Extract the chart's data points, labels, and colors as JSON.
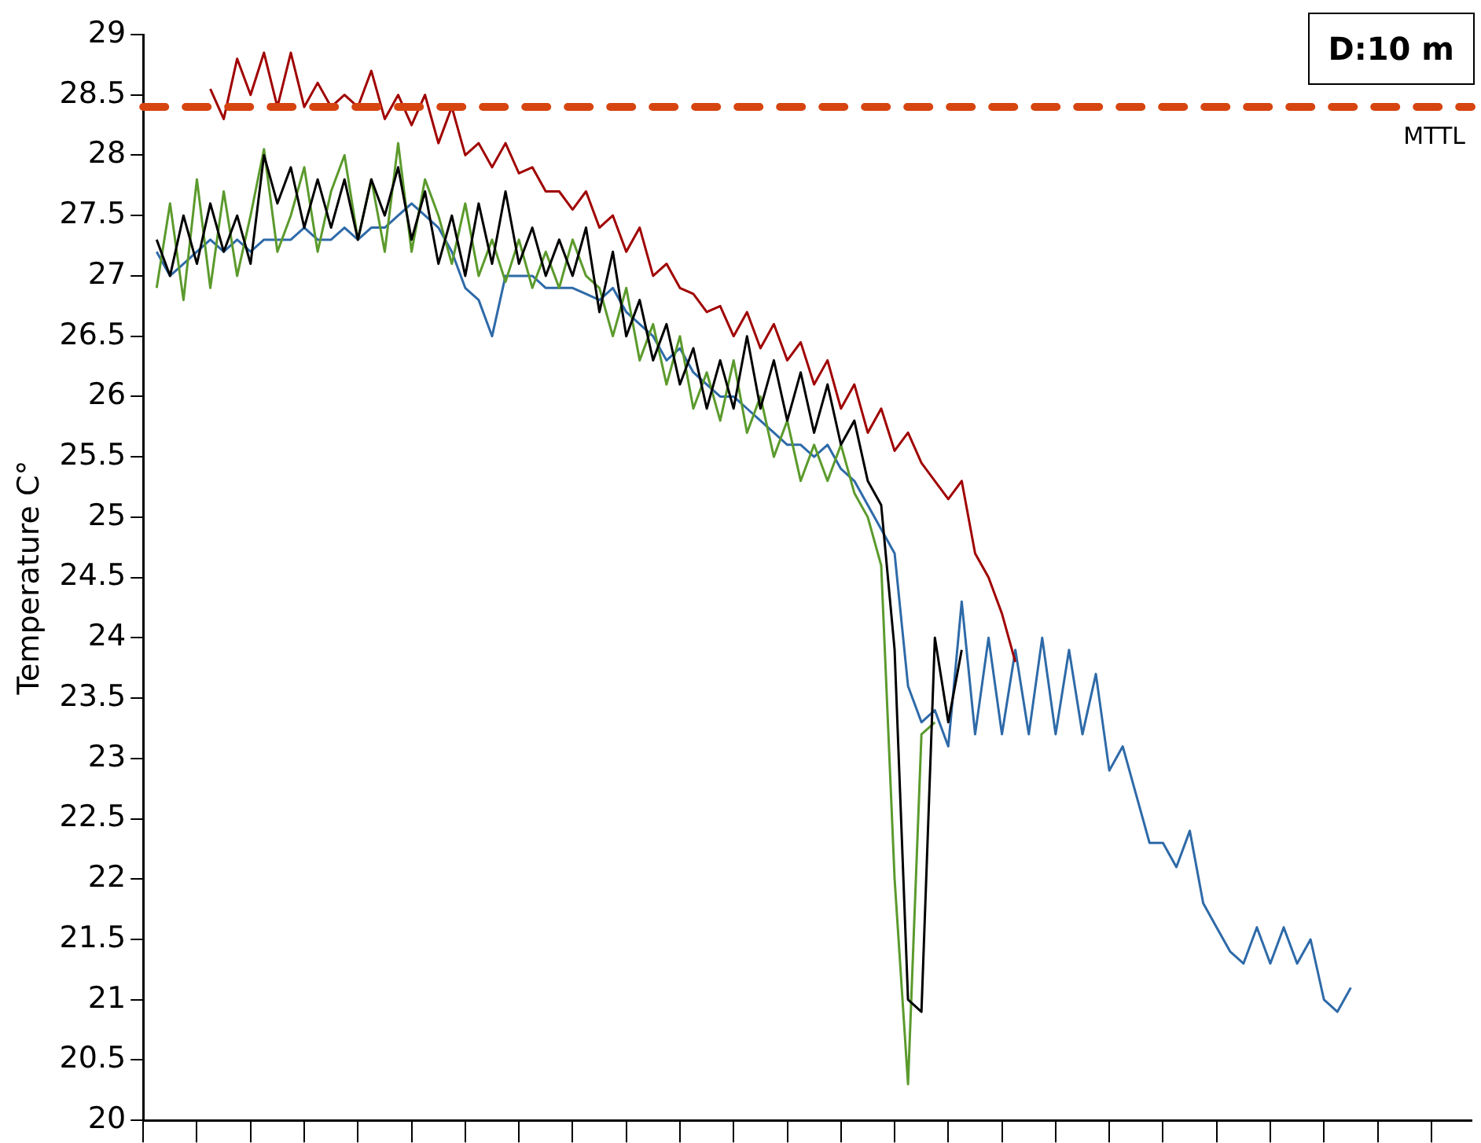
{
  "chart_data": {
    "type": "line",
    "ylabel": "Temperature C°",
    "annotations": [
      "D:10 m"
    ],
    "categories": [
      null,
      null,
      null,
      null,
      null,
      null,
      null,
      null,
      null,
      null,
      null,
      null,
      null,
      null,
      null,
      null,
      null,
      null,
      null,
      null,
      null,
      null,
      null,
      null,
      null,
      null,
      null,
      null,
      null,
      null,
      null,
      null,
      null,
      null,
      null,
      null,
      null,
      null,
      null,
      null,
      null,
      null,
      null,
      null,
      null,
      null,
      null,
      null,
      null,
      null,
      null,
      null,
      null,
      null,
      null,
      null,
      null,
      null,
      null,
      null,
      null,
      null,
      null,
      null,
      null,
      null,
      null,
      null,
      null,
      null,
      null,
      null,
      null,
      null,
      null,
      null,
      null,
      null,
      null,
      null,
      null,
      null,
      null,
      null,
      null,
      null,
      null,
      null,
      null,
      null,
      null,
      null,
      null,
      null,
      null,
      null,
      null,
      null,
      null,
      null
    ],
    "ylim": [
      20,
      29
    ],
    "yticks": [
      20,
      20.5,
      21,
      21.5,
      22,
      22.5,
      23,
      23.5,
      24,
      24.5,
      25,
      25.5,
      26,
      26.5,
      27,
      27.5,
      28,
      28.5,
      29
    ],
    "tick_labels": "y",
    "grid": false,
    "marker": "none",
    "line_style": "solid",
    "ref_lines": [
      {
        "axis": "y",
        "value": 28.4,
        "label": "MTTL",
        "color": "#d64510",
        "line_style": "dashed"
      }
    ],
    "series": [
      {
        "color": "#a00000",
        "values": [
          null,
          null,
          null,
          null,
          null,
          28.55,
          28.3,
          28.8,
          28.5,
          28.85,
          28.4,
          28.85,
          28.4,
          28.6,
          28.4,
          28.5,
          28.4,
          28.7,
          28.3,
          28.5,
          28.25,
          28.5,
          28.1,
          28.4,
          28.0,
          28.1,
          27.9,
          28.1,
          27.85,
          27.9,
          27.7,
          27.7,
          27.55,
          27.7,
          27.4,
          27.5,
          27.2,
          27.4,
          27.0,
          27.1,
          26.9,
          26.85,
          26.7,
          26.75,
          26.5,
          26.7,
          26.4,
          26.6,
          26.3,
          26.45,
          26.1,
          26.3,
          25.9,
          26.1,
          25.7,
          25.9,
          25.55,
          25.7,
          25.45,
          25.3,
          25.15,
          25.3,
          24.7,
          24.5,
          24.2,
          23.8,
          null,
          null,
          null,
          null,
          null,
          null,
          null,
          null,
          null,
          null,
          null,
          null,
          null,
          null,
          null,
          null,
          null,
          null,
          null,
          null,
          null,
          null,
          null,
          null,
          null,
          null,
          null,
          null,
          null,
          null,
          null,
          null,
          null,
          null
        ]
      },
      {
        "color": "#000000",
        "values": [
          null,
          27.3,
          27.0,
          27.5,
          27.1,
          27.6,
          27.2,
          27.5,
          27.1,
          28.0,
          27.6,
          27.9,
          27.4,
          27.8,
          27.4,
          27.8,
          27.3,
          27.8,
          27.5,
          27.9,
          27.3,
          27.7,
          27.1,
          27.5,
          27.0,
          27.6,
          27.1,
          27.7,
          27.1,
          27.4,
          27.0,
          27.3,
          27.0,
          27.4,
          26.7,
          27.2,
          26.5,
          26.8,
          26.3,
          26.6,
          26.1,
          26.4,
          25.9,
          26.3,
          25.9,
          26.5,
          25.9,
          26.3,
          25.8,
          26.2,
          25.7,
          26.1,
          25.6,
          25.8,
          25.3,
          25.1,
          23.9,
          21.0,
          20.9,
          24.0,
          23.3,
          23.9,
          null,
          null,
          null,
          null,
          null,
          null,
          null,
          null,
          null,
          null,
          null,
          null,
          null,
          null,
          null,
          null,
          null,
          null,
          null,
          null,
          null,
          null,
          null,
          null,
          null,
          null,
          null,
          null,
          null,
          null,
          null,
          null,
          null,
          null,
          null,
          null,
          null,
          null
        ]
      },
      {
        "color": "#5b9a2c",
        "values": [
          null,
          26.9,
          27.6,
          26.8,
          27.8,
          26.9,
          27.7,
          27.0,
          27.5,
          28.05,
          27.2,
          27.5,
          27.9,
          27.2,
          27.7,
          28.0,
          27.3,
          27.8,
          27.2,
          28.1,
          27.2,
          27.8,
          27.5,
          27.1,
          27.6,
          27.0,
          27.3,
          26.95,
          27.3,
          26.9,
          27.2,
          26.9,
          27.3,
          27.0,
          26.9,
          26.5,
          26.9,
          26.3,
          26.6,
          26.1,
          26.5,
          25.9,
          26.2,
          25.8,
          26.3,
          25.7,
          26.0,
          25.5,
          25.8,
          25.3,
          25.6,
          25.3,
          25.6,
          25.2,
          25.0,
          24.6,
          22.0,
          20.3,
          23.2,
          23.3,
          null,
          null,
          null,
          null,
          null,
          null,
          null,
          null,
          null,
          null,
          null,
          null,
          null,
          null,
          null,
          null,
          null,
          null,
          null,
          null,
          null,
          null,
          null,
          null,
          null,
          null,
          null,
          null,
          null,
          null,
          null,
          null,
          null,
          null,
          null,
          null,
          null,
          null,
          null,
          null
        ]
      },
      {
        "color": "#2e6aa8",
        "values": [
          null,
          27.2,
          27.0,
          27.1,
          27.2,
          27.3,
          27.2,
          27.3,
          27.2,
          27.3,
          27.3,
          27.3,
          27.4,
          27.3,
          27.3,
          27.4,
          27.3,
          27.4,
          27.4,
          27.5,
          27.6,
          27.5,
          27.4,
          27.2,
          26.9,
          26.8,
          26.5,
          27.0,
          27.0,
          27.0,
          26.9,
          26.9,
          26.9,
          26.85,
          26.8,
          26.9,
          26.7,
          26.6,
          26.5,
          26.3,
          26.4,
          26.2,
          26.1,
          26.0,
          26.0,
          25.9,
          25.8,
          25.7,
          25.6,
          25.6,
          25.5,
          25.6,
          25.4,
          25.3,
          25.1,
          24.9,
          24.7,
          23.6,
          23.3,
          23.4,
          23.1,
          24.3,
          23.2,
          24.0,
          23.2,
          23.9,
          23.2,
          24.0,
          23.2,
          23.9,
          23.2,
          23.7,
          22.9,
          23.1,
          22.7,
          22.3,
          22.3,
          22.1,
          22.4,
          21.8,
          21.6,
          21.4,
          21.3,
          21.6,
          21.3,
          21.6,
          21.3,
          21.5,
          21.0,
          20.9,
          21.1,
          null,
          null,
          null,
          null,
          null,
          null,
          null,
          null,
          null
        ]
      }
    ]
  }
}
